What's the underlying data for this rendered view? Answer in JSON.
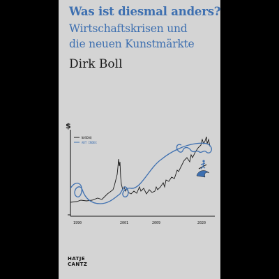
{
  "book": {
    "title": "Was ist diesmal anders?",
    "subtitle_line1": "Wirtschaftskrisen und",
    "subtitle_line2": "die neuen Kunstmärkte",
    "author": "Dirk Boll",
    "publisher_line1": "HATJE",
    "publisher_line2": "CANTZ"
  },
  "colors": {
    "cover_bg": "#d4d4d4",
    "accent_blue": "#3d6fb0",
    "ink": "#1a1a1a",
    "outer_bg": "#000000"
  },
  "chart_data": {
    "type": "line",
    "y_axis_symbol": "$",
    "legend_position": "top-left",
    "x_ticks": [
      "1990",
      "2001",
      "2009",
      "2020"
    ],
    "series": [
      {
        "name": "NASDAQ",
        "color": "#1a1a1a"
      },
      {
        "name": "ART INDEX",
        "color": "#3d6fb0"
      }
    ],
    "annotation_icon": "surfer-on-wave-icon"
  }
}
